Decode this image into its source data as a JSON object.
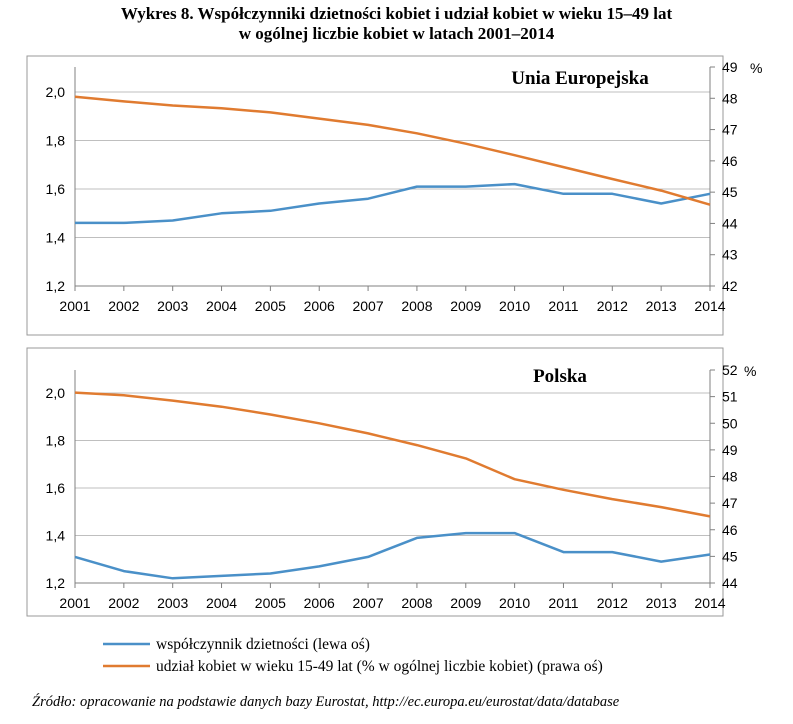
{
  "title_line1": "Wykres 8. Współczynniki dzietności kobiet i udział kobiet w wieku 15–49 lat",
  "title_line2": "w ogólnej liczbie kobiet w latach 2001–2014",
  "source": "Źródło: opracowanie na podstawie danych bazy Eurostat, http://ec.europa.eu/eurostat/data/database",
  "legend": [
    {
      "label": "współczynnik dzietności (lewa oś)",
      "color": "#4a90c8"
    },
    {
      "label": "udział kobiet w wieku 15-49 lat (% w ogólnej liczbie kobiet) (prawa oś)",
      "color": "#e07b30"
    }
  ],
  "colors": {
    "fertility": "#4a90c8",
    "share": "#e07b30",
    "grid": "#bfbfbf",
    "frame": "#999999"
  },
  "chart_data": [
    {
      "type": "line",
      "title": "Unia Europejska",
      "x": [
        "2001",
        "2002",
        "2003",
        "2004",
        "2005",
        "2006",
        "2007",
        "2008",
        "2009",
        "2010",
        "2011",
        "2012",
        "2013",
        "2014"
      ],
      "left_axis": {
        "ylim": [
          1.2,
          2.0
        ],
        "ticks": [
          "1,2",
          "1,4",
          "1,6",
          "1,8",
          "2,0"
        ]
      },
      "right_axis": {
        "ylim": [
          42,
          49
        ],
        "ticks": [
          "42",
          "43",
          "44",
          "45",
          "46",
          "47",
          "48",
          "49"
        ],
        "unit": "%"
      },
      "series": [
        {
          "axis": "left",
          "color": "#4a90c8",
          "values": [
            1.46,
            1.46,
            1.47,
            1.5,
            1.51,
            1.54,
            1.56,
            1.61,
            1.61,
            1.62,
            1.58,
            1.58,
            1.54,
            1.58
          ]
        },
        {
          "axis": "right",
          "color": "#e07b30",
          "values": [
            48.05,
            47.9,
            47.77,
            47.68,
            47.55,
            47.35,
            47.15,
            46.88,
            46.55,
            46.18,
            45.8,
            45.42,
            45.05,
            44.6
          ]
        }
      ]
    },
    {
      "type": "line",
      "title": "Polska",
      "x": [
        "2001",
        "2002",
        "2003",
        "2004",
        "2005",
        "2006",
        "2007",
        "2008",
        "2009",
        "2010",
        "2011",
        "2012",
        "2013",
        "2014"
      ],
      "left_axis": {
        "ylim": [
          1.2,
          2.0
        ],
        "ticks": [
          "1,2",
          "1,4",
          "1,6",
          "1,8",
          "2,0"
        ]
      },
      "right_axis": {
        "ylim": [
          44,
          52
        ],
        "ticks": [
          "44",
          "45",
          "46",
          "47",
          "48",
          "49",
          "50",
          "51",
          "52"
        ],
        "unit": "%"
      },
      "series": [
        {
          "axis": "left",
          "color": "#4a90c8",
          "values": [
            1.31,
            1.25,
            1.22,
            1.23,
            1.24,
            1.27,
            1.31,
            1.39,
            1.41,
            1.41,
            1.33,
            1.33,
            1.29,
            1.32
          ]
        },
        {
          "axis": "right",
          "color": "#e07b30",
          "values": [
            51.15,
            51.05,
            50.85,
            50.62,
            50.33,
            50.0,
            49.62,
            49.18,
            48.68,
            47.9,
            47.5,
            47.15,
            46.85,
            46.5
          ]
        }
      ]
    }
  ]
}
